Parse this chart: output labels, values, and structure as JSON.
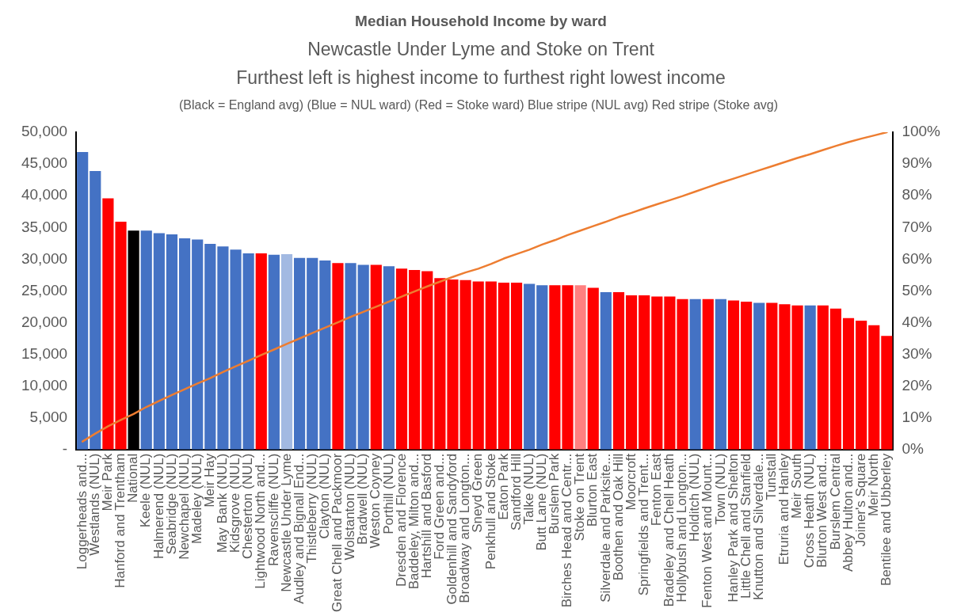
{
  "chart_data": {
    "type": "bar",
    "title": "Median Household Income by ward",
    "subtitle": "Newcastle Under Lyme and Stoke on Trent\nFurthest left is highest income to furthest right lowest income",
    "annotations": [
      "(Black = England avg) (Blue = NUL ward) (Red = Stoke ward) Blue stripe (NUL avg) Red stripe (Stoke avg)"
    ],
    "categories": [
      "Loggerheads and...",
      "Westlands (NUL)",
      "Meir Park",
      "Hanford and Trentham",
      "National",
      "Keele (NUL)",
      "Halmerend (NUL)",
      "Seabridge (NUL)",
      "Newchapel (NUL)",
      "Madeley (NUL)",
      "Meir Hay",
      "May Bank (NUL)",
      "Kidsgrove (NUL)",
      "Chesterton (NUL)",
      "Lightwood North and...",
      "Ravenscliffe (NUL)",
      "Newcastle Under Lyme",
      "Audley and Bignall End...",
      "Thistleberry (NUL)",
      "Clayton (NUL)",
      "Great Chell and Packmoor",
      "Wolstanton (NUL)",
      "Bradwell (NUL)",
      "Weston Coyney",
      "Porthill (NUL)",
      "Dresden and Florence",
      "Baddeley, Milton and...",
      "Hartshill and Basford",
      "Ford Green and...",
      "Goldenhill and Sandyford",
      "Broadway and Longton...",
      "Sneyd Green",
      "Penkhull and Stoke",
      "Eaton Park",
      "Sandford Hill",
      "Talke (NUL)",
      "Butt Lane (NUL)",
      "Burslem Park",
      "Birches Head and Centr...",
      "Stoke on Trent",
      "Blurton East",
      "Silverdale and Parksite...",
      "Boothen and Oak Hill",
      "Moorcroft",
      "Springfields and Trent...",
      "Fenton East",
      "Bradeley and Chell Heath",
      "Hollybush and Longton...",
      "Holditch (NUL)",
      "Fenton West and Mount...",
      "Town (NUL)",
      "Hanley Park and Shelton",
      "Little Chell and Stanfield",
      "Knutton and Silverdale...",
      "Tunstall",
      "Etruria and Hanley",
      "Meir South",
      "Cross Heath (NUL)",
      "Blurton West and...",
      "Burslem Central",
      "Abbey Hulton and...",
      "Joiner's Square",
      "Meir North",
      "Bentilee and Ubberley"
    ],
    "series": [
      {
        "colors": [
          "#4472c4",
          "#4472c4",
          "#ff0000",
          "#ff0000",
          "#000000",
          "#4472c4",
          "#4472c4",
          "#4472c4",
          "#4472c4",
          "#4472c4",
          "#4472c4",
          "#4472c4",
          "#4472c4",
          "#4472c4",
          "#ff0000",
          "#4472c4",
          "#a2b9e2",
          "#4472c4",
          "#4472c4",
          "#4472c4",
          "#ff0000",
          "#4472c4",
          "#4472c4",
          "#ff0000",
          "#4472c4",
          "#ff0000",
          "#ff0000",
          "#ff0000",
          "#ff0000",
          "#ff0000",
          "#ff0000",
          "#ff0000",
          "#ff0000",
          "#ff0000",
          "#ff0000",
          "#4472c4",
          "#4472c4",
          "#ff0000",
          "#ff0000",
          "#ff8080",
          "#ff0000",
          "#4472c4",
          "#ff0000",
          "#ff0000",
          "#ff0000",
          "#ff0000",
          "#ff0000",
          "#ff0000",
          "#4472c4",
          "#ff0000",
          "#4472c4",
          "#ff0000",
          "#ff0000",
          "#4472c4",
          "#ff0000",
          "#ff0000",
          "#ff0000",
          "#4472c4",
          "#ff0000",
          "#ff0000",
          "#ff0000",
          "#ff0000",
          "#ff0000",
          "#ff0000"
        ],
        "values": [
          46900,
          43900,
          39600,
          35900,
          34500,
          34500,
          34100,
          33900,
          33300,
          33100,
          32400,
          32000,
          31500,
          30900,
          30900,
          30700,
          30800,
          30200,
          30200,
          29800,
          29400,
          29400,
          29100,
          29100,
          28900,
          28500,
          28300,
          28100,
          27000,
          26800,
          26700,
          26500,
          26500,
          26300,
          26300,
          26100,
          25900,
          25900,
          25900,
          25900,
          25500,
          24800,
          24800,
          24300,
          24300,
          24100,
          24100,
          23700,
          23700,
          23700,
          23700,
          23500,
          23300,
          23100,
          23100,
          22900,
          22700,
          22700,
          22700,
          22200,
          20700,
          20300,
          19600,
          17900
        ]
      },
      {
        "type": "line",
        "axis": "y2",
        "color": "#ed7d31",
        "values": [
          2.5,
          5.0,
          7.3,
          9.3,
          11.2,
          13.4,
          15.3,
          17.2,
          19.0,
          20.8,
          22.5,
          24.4,
          26.2,
          28.0,
          29.8,
          31.5,
          33.3,
          35.0,
          36.7,
          38.4,
          40.1,
          41.8,
          43.4,
          45.0,
          46.6,
          48.2,
          49.8,
          51.4,
          52.9,
          54.4,
          55.8,
          57.0,
          58.5,
          60.2,
          61.6,
          63.0,
          64.6,
          66.0,
          67.6,
          69.0,
          70.4,
          71.8,
          73.3,
          74.6,
          76.0,
          77.3,
          78.6,
          79.9,
          81.3,
          82.7,
          84.1,
          85.4,
          86.7,
          88.0,
          89.3,
          90.6,
          91.9,
          93.1,
          94.4,
          95.7,
          96.9,
          98.0,
          99.0,
          100
        ]
      }
    ],
    "ylim": [
      0,
      50000
    ],
    "yticks": [
      {
        "value": 0,
        "label": "-"
      },
      {
        "value": 5000,
        "label": "5,000"
      },
      {
        "value": 10000,
        "label": "10,000"
      },
      {
        "value": 15000,
        "label": "15,000"
      },
      {
        "value": 20000,
        "label": "20,000"
      },
      {
        "value": 25000,
        "label": "25,000"
      },
      {
        "value": 30000,
        "label": "30,000"
      },
      {
        "value": 35000,
        "label": "35,000"
      },
      {
        "value": 40000,
        "label": "40,000"
      },
      {
        "value": 45000,
        "label": "45,000"
      },
      {
        "value": 50000,
        "label": "50,000"
      }
    ],
    "y2lim": [
      0,
      100
    ],
    "y2ticks": [
      {
        "value": 0,
        "label": "0%"
      },
      {
        "value": 10,
        "label": "10%"
      },
      {
        "value": 20,
        "label": "20%"
      },
      {
        "value": 30,
        "label": "30%"
      },
      {
        "value": 40,
        "label": "40%"
      },
      {
        "value": 50,
        "label": "50%"
      },
      {
        "value": 60,
        "label": "60%"
      },
      {
        "value": 70,
        "label": "70%"
      },
      {
        "value": 80,
        "label": "80%"
      },
      {
        "value": 90,
        "label": "90%"
      },
      {
        "value": 100,
        "label": "100%"
      }
    ],
    "grid": false,
    "legend": false,
    "marker": "none"
  }
}
